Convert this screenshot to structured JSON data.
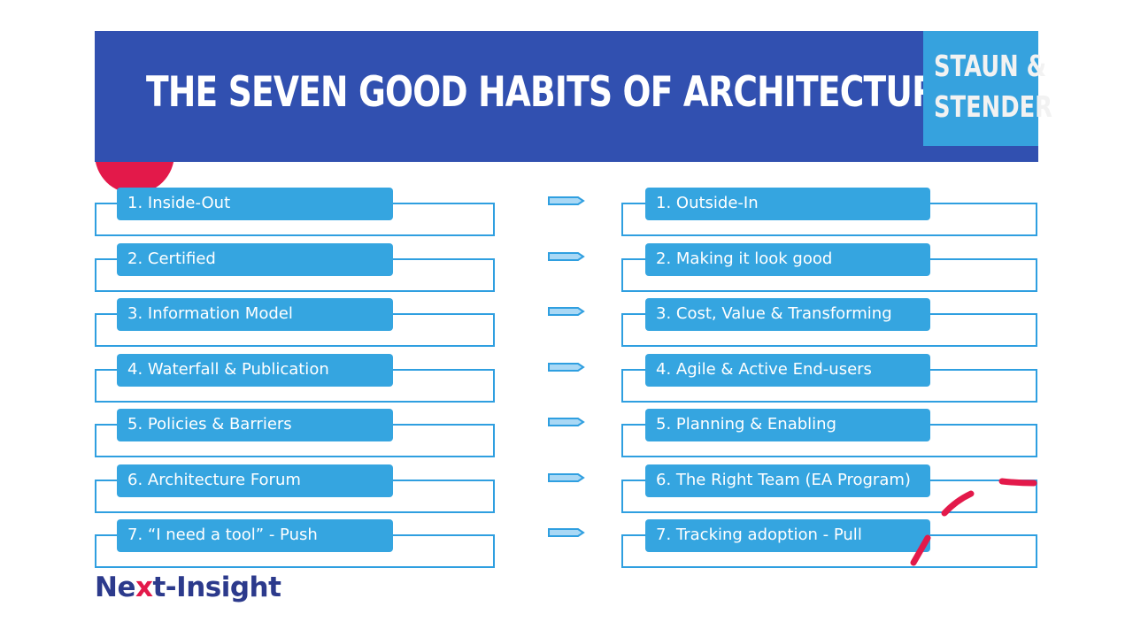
{
  "header": {
    "title": "THE SEVEN GOOD HABITS OF ARCHITECTURE",
    "brand_line1": "STAUN &",
    "brand_line2": "STENDER"
  },
  "left_items": [
    "1. Inside-Out",
    "2. Certified",
    "3. Information Model",
    "4. Waterfall & Publication",
    "5. Policies & Barriers",
    "6. Architecture Forum",
    "7. “I need a tool” - Push"
  ],
  "right_items": [
    "1. Outside-In",
    "2. Making it look good",
    "3. Cost, Value & Transforming",
    "4. Agile & Active End-users",
    "5. Planning & Enabling",
    "6. The Right Team (EA Program)",
    "7. Tracking adoption - Pull"
  ],
  "footer": {
    "logo_prefix": "Ne",
    "logo_x": "x",
    "logo_suffix": "t-Insight"
  },
  "colors": {
    "header_blue": "#3150b0",
    "brand_blue": "#36a2de",
    "pill_blue": "#35a5e0",
    "accent_red": "#e3194a",
    "logo_navy": "#2c3a8c"
  },
  "icons": {
    "row_arrow": "right-arrow-icon"
  }
}
